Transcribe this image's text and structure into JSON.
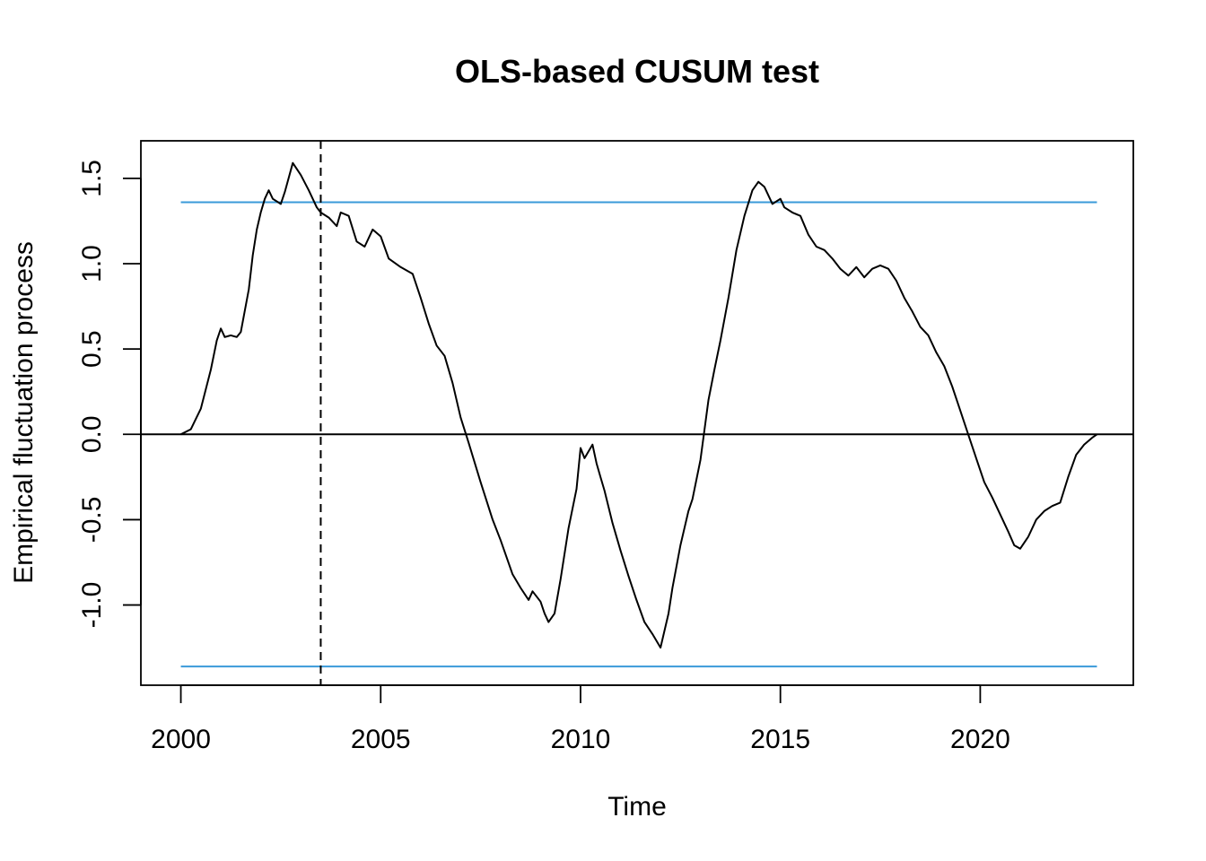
{
  "chart_data": {
    "type": "line",
    "title": "OLS-based CUSUM test",
    "xlabel": "Time",
    "ylabel": "Empirical fluctuation process",
    "xlim": [
      1999.0,
      2023.83
    ],
    "ylim": [
      -1.47,
      1.72
    ],
    "x_ticks": [
      2000,
      2005,
      2010,
      2015,
      2020
    ],
    "x_tick_labels": [
      "2000",
      "2005",
      "2010",
      "2015",
      "2020"
    ],
    "y_ticks": [
      -1.0,
      -0.5,
      0.0,
      0.5,
      1.0,
      1.5
    ],
    "y_tick_labels": [
      "-1.0",
      "-0.5",
      "0.0",
      "0.5",
      "1.0",
      "1.5"
    ],
    "grid": false,
    "boundary": {
      "upper": 1.36,
      "lower": -1.36,
      "x_start": 2000.0,
      "x_end": 2022.92,
      "color": "#3a9ad9"
    },
    "zero_line": {
      "y": 0,
      "color": "#000000"
    },
    "break_line": {
      "x": 2003.5,
      "style": "dashed",
      "color": "#000000"
    },
    "series": [
      {
        "line_color": "#000000",
        "x": [
          2000.0,
          2000.25,
          2000.5,
          2000.75,
          2000.9,
          2001.0,
          2001.1,
          2001.25,
          2001.4,
          2001.5,
          2001.7,
          2001.8,
          2001.9,
          2002.0,
          2002.1,
          2002.2,
          2002.3,
          2002.5,
          2002.6,
          2002.8,
          2003.0,
          2003.2,
          2003.4,
          2003.5,
          2003.7,
          2003.9,
          2004.0,
          2004.2,
          2004.4,
          2004.6,
          2004.8,
          2005.0,
          2005.2,
          2005.5,
          2005.8,
          2006.0,
          2006.2,
          2006.4,
          2006.6,
          2006.8,
          2007.0,
          2007.2,
          2007.5,
          2007.8,
          2008.0,
          2008.3,
          2008.5,
          2008.7,
          2008.8,
          2009.0,
          2009.1,
          2009.2,
          2009.35,
          2009.5,
          2009.7,
          2009.9,
          2010.0,
          2010.1,
          2010.2,
          2010.3,
          2010.4,
          2010.5,
          2010.6,
          2010.8,
          2011.0,
          2011.2,
          2011.4,
          2011.6,
          2011.8,
          2012.0,
          2012.2,
          2012.3,
          2012.5,
          2012.7,
          2012.8,
          2013.0,
          2013.2,
          2013.35,
          2013.5,
          2013.7,
          2013.9,
          2014.1,
          2014.3,
          2014.45,
          2014.6,
          2014.8,
          2015.0,
          2015.1,
          2015.3,
          2015.5,
          2015.7,
          2015.9,
          2016.1,
          2016.3,
          2016.5,
          2016.7,
          2016.9,
          2017.1,
          2017.3,
          2017.5,
          2017.7,
          2017.9,
          2018.1,
          2018.3,
          2018.5,
          2018.7,
          2018.9,
          2019.1,
          2019.3,
          2019.5,
          2019.7,
          2019.9,
          2020.1,
          2020.3,
          2020.5,
          2020.7,
          2020.85,
          2021.0,
          2021.2,
          2021.4,
          2021.6,
          2021.8,
          2022.0,
          2022.2,
          2022.4,
          2022.6,
          2022.8,
          2022.92
        ],
        "y": [
          0.0,
          0.03,
          0.15,
          0.38,
          0.55,
          0.62,
          0.57,
          0.58,
          0.57,
          0.6,
          0.85,
          1.05,
          1.2,
          1.3,
          1.38,
          1.43,
          1.38,
          1.35,
          1.42,
          1.59,
          1.52,
          1.43,
          1.33,
          1.3,
          1.27,
          1.22,
          1.3,
          1.28,
          1.13,
          1.1,
          1.2,
          1.16,
          1.03,
          0.98,
          0.94,
          0.8,
          0.65,
          0.52,
          0.46,
          0.3,
          0.1,
          -0.05,
          -0.28,
          -0.5,
          -0.62,
          -0.82,
          -0.9,
          -0.97,
          -0.92,
          -0.98,
          -1.05,
          -1.1,
          -1.05,
          -0.85,
          -0.55,
          -0.32,
          -0.08,
          -0.14,
          -0.1,
          -0.06,
          -0.17,
          -0.25,
          -0.33,
          -0.52,
          -0.68,
          -0.83,
          -0.97,
          -1.1,
          -1.17,
          -1.25,
          -1.05,
          -0.9,
          -0.65,
          -0.45,
          -0.38,
          -0.15,
          0.2,
          0.38,
          0.55,
          0.8,
          1.08,
          1.28,
          1.43,
          1.48,
          1.45,
          1.35,
          1.38,
          1.33,
          1.3,
          1.28,
          1.17,
          1.1,
          1.08,
          1.03,
          0.97,
          0.93,
          0.98,
          0.92,
          0.97,
          0.99,
          0.97,
          0.9,
          0.8,
          0.72,
          0.63,
          0.58,
          0.48,
          0.4,
          0.28,
          0.14,
          0.0,
          -0.14,
          -0.28,
          -0.37,
          -0.47,
          -0.57,
          -0.65,
          -0.67,
          -0.6,
          -0.5,
          -0.45,
          -0.42,
          -0.4,
          -0.25,
          -0.12,
          -0.06,
          -0.02,
          0.0
        ]
      }
    ]
  }
}
